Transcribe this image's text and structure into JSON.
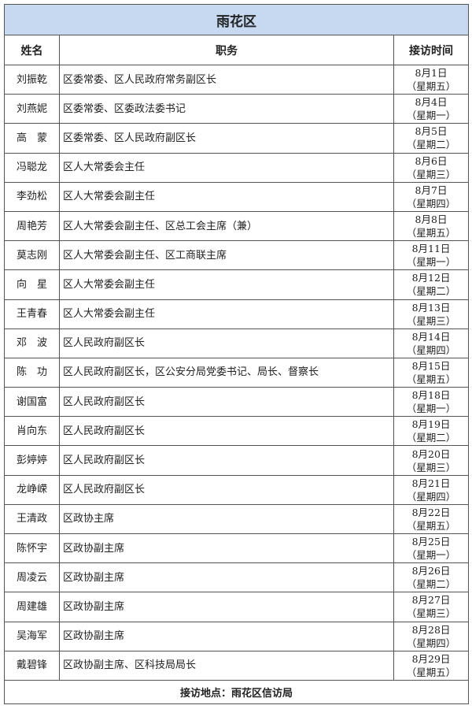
{
  "title": "雨花区",
  "headers": {
    "name": "姓名",
    "position": "职务",
    "time": "接访时间"
  },
  "rows": [
    {
      "name": "刘振乾",
      "position": "区委常委、区人民政府常务副区长",
      "date": "8月1日",
      "weekday": "（星期五）"
    },
    {
      "name": "刘燕妮",
      "position": "区委常委、区委政法委书记",
      "date": "8月4日",
      "weekday": "（星期一）"
    },
    {
      "name": "高　蒙",
      "position": "区委常委、区人民政府副区长",
      "date": "8月5日",
      "weekday": "（星期二）"
    },
    {
      "name": "冯聪龙",
      "position": "区人大常委会主任",
      "date": "8月6日",
      "weekday": "（星期三）"
    },
    {
      "name": "李劲松",
      "position": "区人大常委会副主任",
      "date": "8月7日",
      "weekday": "（星期四）"
    },
    {
      "name": "周艳芳",
      "position": "区人大常委会副主任、区总工会主席（兼）",
      "date": "8月8日",
      "weekday": "（星期五）"
    },
    {
      "name": "莫志刚",
      "position": "区人大常委会副主任、区工商联主席",
      "date": "8月11日",
      "weekday": "（星期一）"
    },
    {
      "name": "向　星",
      "position": "区人大常委会副主任",
      "date": "8月12日",
      "weekday": "（星期二）"
    },
    {
      "name": "王青春",
      "position": "区人大常委会副主任",
      "date": "8月13日",
      "weekday": "（星期三）"
    },
    {
      "name": "邓　波",
      "position": "区人民政府副区长",
      "date": "8月14日",
      "weekday": "（星期四）"
    },
    {
      "name": "陈　功",
      "position": "区人民政府副区长，区公安分局党委书记、局长、督察长",
      "date": "8月15日",
      "weekday": "（星期五）"
    },
    {
      "name": "谢国富",
      "position": "区人民政府副区长",
      "date": "8月18日",
      "weekday": "（星期一）"
    },
    {
      "name": "肖向东",
      "position": "区人民政府副区长",
      "date": "8月19日",
      "weekday": "（星期二）"
    },
    {
      "name": "彭婷婷",
      "position": "区人民政府副区长",
      "date": "8月20日",
      "weekday": "（星期三）"
    },
    {
      "name": "龙峥嵘",
      "position": "区人民政府副区长",
      "date": "8月21日",
      "weekday": "（星期四）"
    },
    {
      "name": "王清政",
      "position": "区政协主席",
      "date": "8月22日",
      "weekday": "（星期五）"
    },
    {
      "name": "陈怀宇",
      "position": "区政协副主席",
      "date": "8月25日",
      "weekday": "（星期一）"
    },
    {
      "name": "周凌云",
      "position": "区政协副主席",
      "date": "8月26日",
      "weekday": "（星期二）"
    },
    {
      "name": "周建雄",
      "position": "区政协副主席",
      "date": "8月27日",
      "weekday": "（星期三）"
    },
    {
      "name": "吴海军",
      "position": "区政协副主席",
      "date": "8月28日",
      "weekday": "（星期四）"
    },
    {
      "name": "戴碧锋",
      "position": "区政协副主席、区科技局局长",
      "date": "8月29日",
      "weekday": "（星期五）"
    }
  ],
  "footer": "接访地点：雨花区信访局",
  "colors": {
    "title_bg": "#c6d9f1",
    "border": "#555555"
  }
}
